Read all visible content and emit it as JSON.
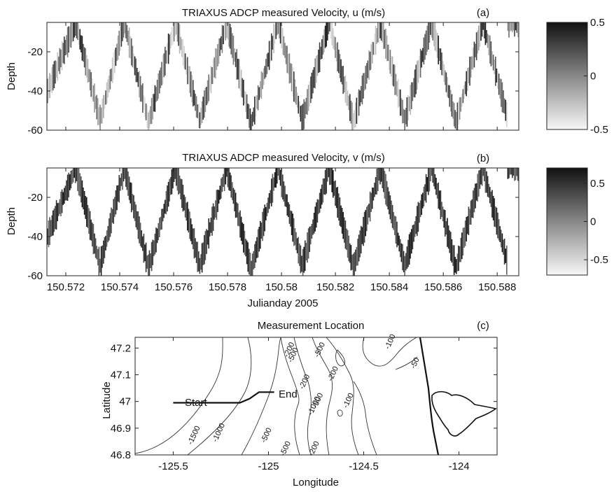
{
  "chart_data": [
    {
      "panel": "(a)",
      "type": "heatmap",
      "title": "TRIAXUS ADCP measured Velocity, u (m/s)",
      "ylabel": "Depth",
      "xlabel": "",
      "x_ticks": [
        "150.572",
        "150.574",
        "150.576",
        "150.578",
        "150.58",
        "150.582",
        "150.584",
        "150.586",
        "150.588"
      ],
      "x_tick_values": [
        150.572,
        150.574,
        150.576,
        150.578,
        150.58,
        150.582,
        150.584,
        150.586,
        150.588
      ],
      "y_ticks": [
        "-20",
        "-40",
        "-60"
      ],
      "y_tick_values": [
        -20,
        -40,
        -60
      ],
      "xlim": [
        150.5713,
        150.5888
      ],
      "ylim": [
        -60,
        -5
      ],
      "colorbar": {
        "ticks": [
          "0.5",
          "0",
          "-0.5"
        ],
        "values": [
          0.5,
          0,
          -0.5
        ],
        "range": [
          -0.5,
          0.5
        ],
        "colormap": "gray"
      },
      "tow_crests": [
        150.57235,
        150.57415,
        150.57605,
        150.57795,
        150.57985,
        150.58175,
        150.58365,
        150.58555,
        150.58745
      ],
      "tow_troughs": [
        150.57325,
        150.57505,
        150.57695,
        150.57885,
        150.58075,
        150.58265,
        150.58455,
        150.58645,
        150.58835
      ],
      "trough_depths": [
        -55,
        -56,
        -55,
        -57,
        -55,
        -56,
        -55,
        -56,
        -53
      ],
      "shading": "mixed"
    },
    {
      "panel": "(b)",
      "type": "heatmap",
      "title": "TRIAXUS ADCP measured Velocity, v (m/s)",
      "ylabel": "Depth",
      "xlabel": "Julianday 2005",
      "x_ticks": [
        "150.572",
        "150.574",
        "150.576",
        "150.578",
        "150.58",
        "150.582",
        "150.584",
        "150.586",
        "150.588"
      ],
      "x_tick_values": [
        150.572,
        150.574,
        150.576,
        150.578,
        150.58,
        150.582,
        150.584,
        150.586,
        150.588
      ],
      "y_ticks": [
        "-20",
        "-40",
        "-60"
      ],
      "y_tick_values": [
        -20,
        -40,
        -60
      ],
      "xlim": [
        150.5713,
        150.5888
      ],
      "ylim": [
        -60,
        -5
      ],
      "colorbar": {
        "ticks": [
          "0.5",
          "0",
          "-0.5"
        ],
        "values": [
          0.5,
          0,
          -0.5
        ],
        "range": [
          -0.7,
          0.7
        ],
        "colormap": "gray"
      },
      "tow_crests": [
        150.57235,
        150.57415,
        150.57605,
        150.57795,
        150.57985,
        150.58175,
        150.58365,
        150.58555,
        150.58745
      ],
      "tow_troughs": [
        150.57325,
        150.57505,
        150.57695,
        150.57885,
        150.58075,
        150.58265,
        150.58455,
        150.58645,
        150.58835
      ],
      "trough_depths": [
        -55,
        -56,
        -55,
        -57,
        -55,
        -56,
        -55,
        -56,
        -53
      ],
      "shading": "dark"
    },
    {
      "panel": "(c)",
      "type": "map",
      "title": "Measurement Location",
      "xlabel": "Longitude",
      "ylabel": "Latitude",
      "x_ticks": [
        "-125.5",
        "-125",
        "-124.5",
        "-124"
      ],
      "x_tick_values": [
        -125.5,
        -125,
        -124.5,
        -124
      ],
      "y_ticks": [
        "47.2",
        "47.1",
        "47",
        "46.9",
        "46.8"
      ],
      "y_tick_values": [
        47.2,
        47.1,
        47,
        46.9,
        46.8
      ],
      "xlim": [
        -125.7,
        -123.8
      ],
      "ylim": [
        46.8,
        47.24
      ],
      "track": {
        "start_label": "Start",
        "end_label": "End",
        "points": [
          [
            -125.5,
            46.995
          ],
          [
            -125.15,
            46.995
          ],
          [
            -125.1,
            47.01
          ],
          [
            -125.05,
            47.035
          ],
          [
            -124.97,
            47.035
          ]
        ]
      },
      "contour_labels": [
        {
          "text": "-200",
          "lon": -124.88,
          "lat": 47.19
        },
        {
          "text": "-500",
          "lon": -124.86,
          "lat": 47.17
        },
        {
          "text": "-500",
          "lon": -124.72,
          "lat": 47.19
        },
        {
          "text": "-100",
          "lon": -124.35,
          "lat": 47.22
        },
        {
          "text": "-50",
          "lon": -124.22,
          "lat": 47.14
        },
        {
          "text": "-200",
          "lon": -124.8,
          "lat": 47.07
        },
        {
          "text": "-200",
          "lon": -124.65,
          "lat": 47.1
        },
        {
          "text": "-500",
          "lon": -124.73,
          "lat": 47.0
        },
        {
          "text": "-1000",
          "lon": -124.75,
          "lat": 46.98
        },
        {
          "text": "-100",
          "lon": -124.57,
          "lat": 47.0
        },
        {
          "text": "-1500",
          "lon": -125.38,
          "lat": 46.87
        },
        {
          "text": "-1000",
          "lon": -125.25,
          "lat": 46.88
        },
        {
          "text": "-500",
          "lon": -125.0,
          "lat": 46.87
        },
        {
          "text": "-500",
          "lon": -124.9,
          "lat": 46.82
        },
        {
          "text": "-200",
          "lon": -124.75,
          "lat": 46.82
        }
      ]
    }
  ],
  "panel_tags": {
    "a": "(a)",
    "b": "(b)",
    "c": "(c)"
  },
  "icon_names": [
    "colorbar-u",
    "colorbar-v",
    "coastline",
    "island"
  ]
}
